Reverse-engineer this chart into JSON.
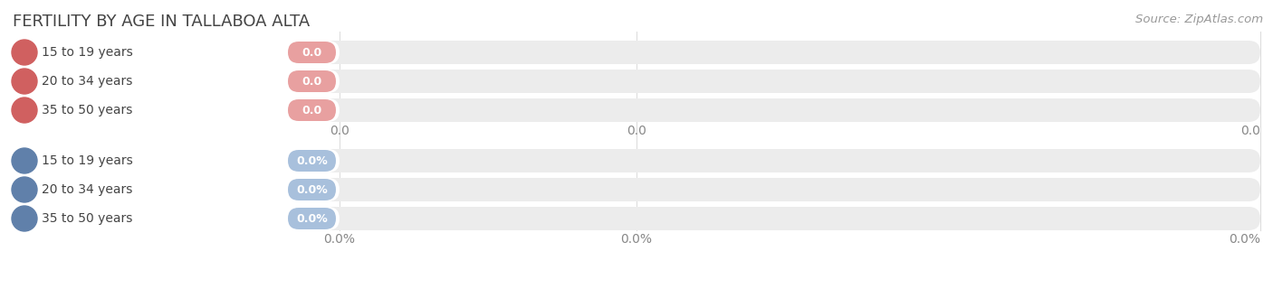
{
  "title": "FERTILITY BY AGE IN TALLABOA ALTA",
  "source": "Source: ZipAtlas.com",
  "categories": [
    "15 to 19 years",
    "20 to 34 years",
    "35 to 50 years"
  ],
  "top_labels": [
    "0.0",
    "0.0",
    "0.0"
  ],
  "bottom_labels": [
    "0.0%",
    "0.0%",
    "0.0%"
  ],
  "top_bar_color": "#e8a0a0",
  "top_dot_color": "#d06060",
  "bottom_bar_color": "#a8c0dc",
  "bottom_dot_color": "#6080aa",
  "bar_bg_color": "#ececec",
  "label_pill_color": "#f8f8f8",
  "text_color": "#444444",
  "axis_text_color": "#888888",
  "background_color": "#ffffff",
  "title_fontsize": 13,
  "label_fontsize": 10,
  "value_fontsize": 9,
  "source_fontsize": 9.5,
  "axis_fontsize": 10
}
